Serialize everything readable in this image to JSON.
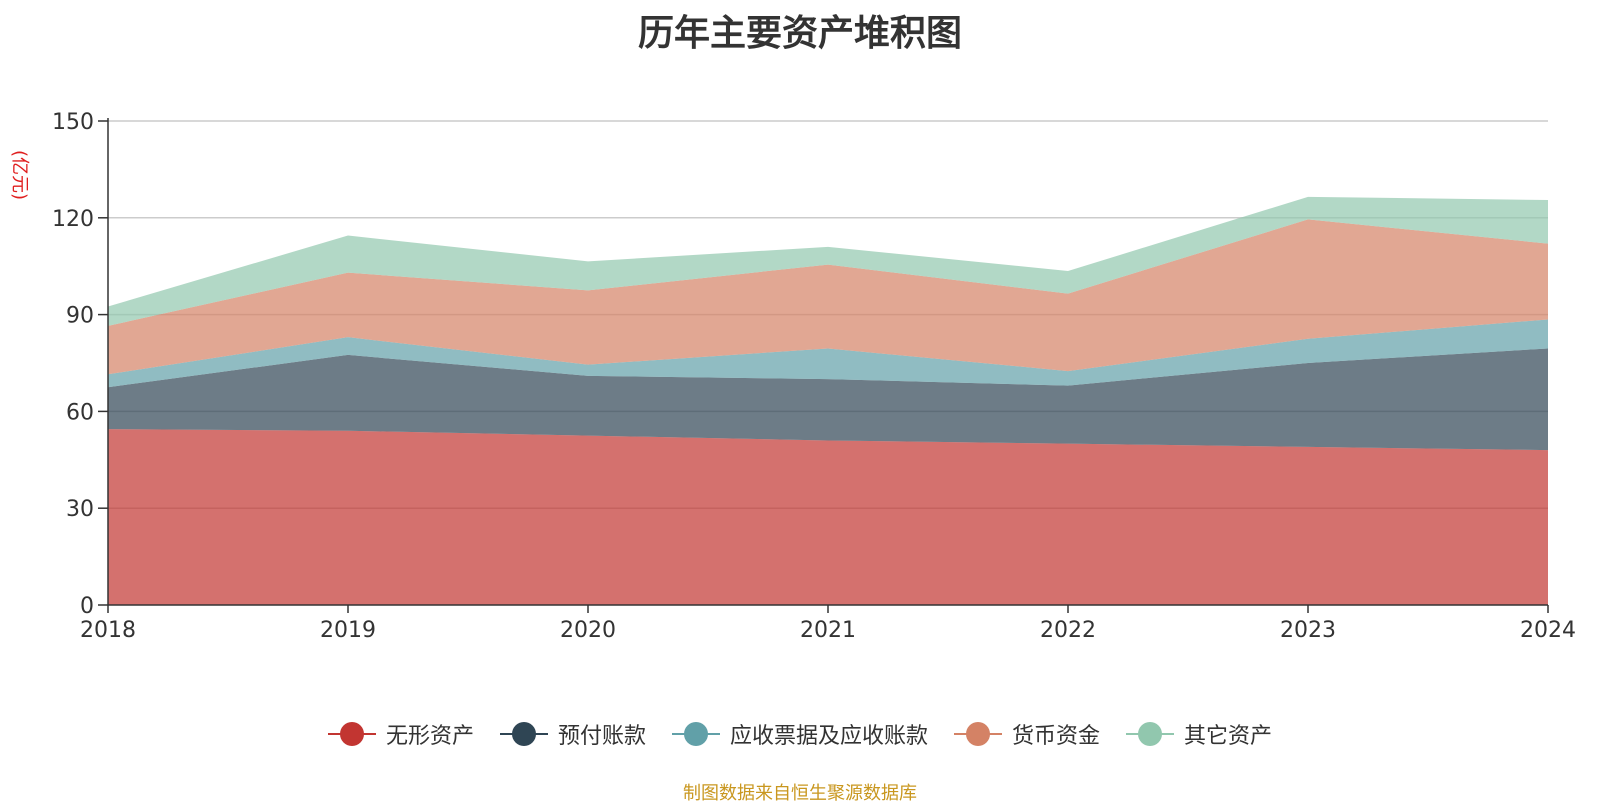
{
  "chart_data": {
    "type": "area",
    "stacked": true,
    "title": "历年主要资产堆积图",
    "unit_label": "(亿元)",
    "x": [
      "2018",
      "2019",
      "2020",
      "2021",
      "2022",
      "2023",
      "2024"
    ],
    "ylim": [
      0,
      150
    ],
    "yticks": [
      "0",
      "30",
      "60",
      "90",
      "120",
      "150"
    ],
    "grid": true,
    "legend_position": "bottom",
    "series": [
      {
        "name": "无形资产",
        "color": "#c23531",
        "values": [
          54.5,
          54.0,
          52.5,
          51.0,
          50.0,
          49.0,
          48.0
        ]
      },
      {
        "name": "预付账款",
        "color": "#2f4554",
        "values": [
          13.0,
          23.5,
          18.5,
          19.0,
          18.0,
          26.0,
          31.5
        ]
      },
      {
        "name": "应收票据及应收账款",
        "color": "#61a0a8",
        "values": [
          4.0,
          5.5,
          3.5,
          9.5,
          4.5,
          7.5,
          9.0
        ]
      },
      {
        "name": "货币资金",
        "color": "#d48265",
        "values": [
          15.0,
          20.0,
          23.0,
          26.0,
          24.0,
          37.0,
          23.5
        ]
      },
      {
        "name": "其它资产",
        "color": "#91c7ae",
        "values": [
          6.0,
          11.5,
          9.0,
          5.5,
          7.0,
          7.0,
          13.5
        ]
      }
    ]
  },
  "footer": {
    "source": "制图数据来自恒生聚源数据库"
  }
}
